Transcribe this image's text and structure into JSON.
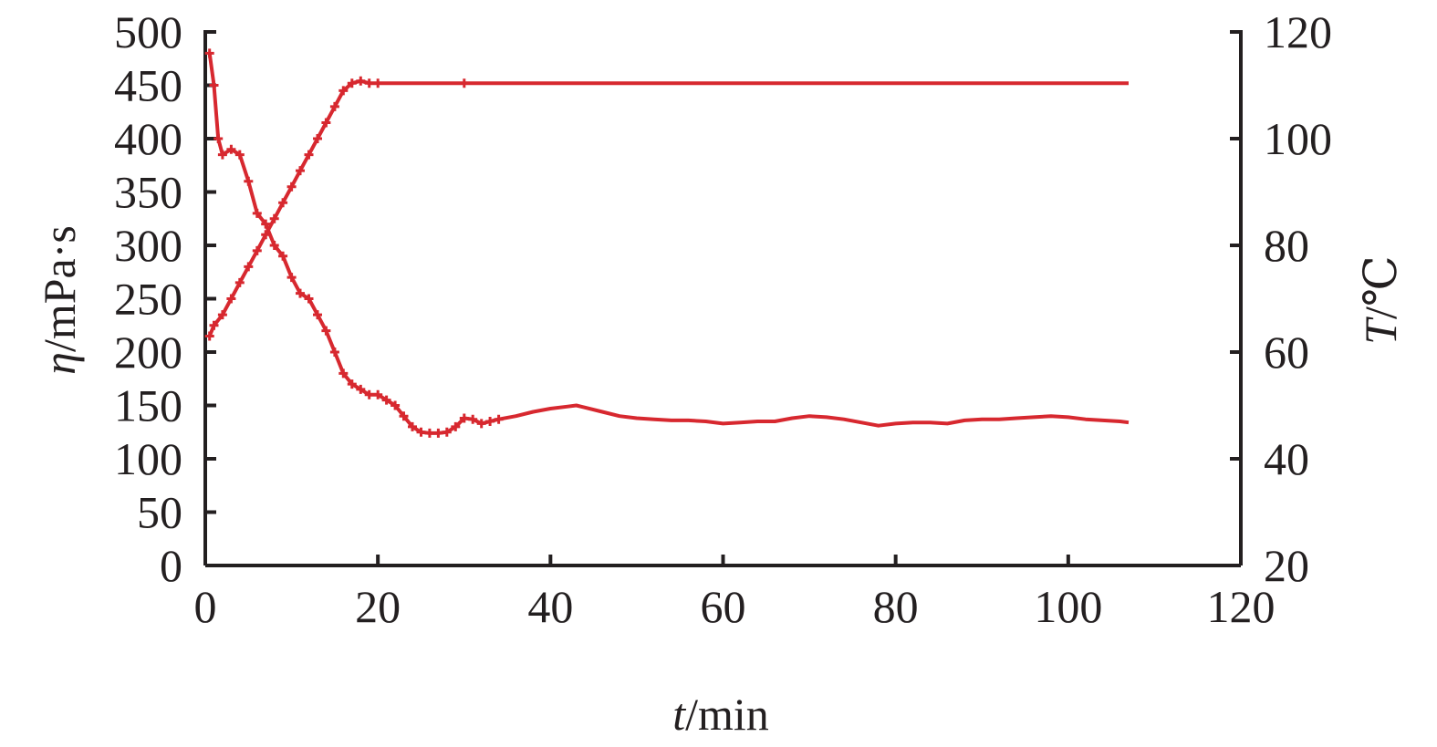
{
  "chart_data": {
    "type": "line",
    "x_axis": {
      "label_var": "t",
      "label_unit": "/min",
      "range": [
        0,
        120
      ],
      "ticks": [
        0,
        20,
        40,
        60,
        80,
        100,
        120
      ]
    },
    "y_left_axis": {
      "label_var": "η",
      "label_unit": "/mPa·s",
      "range": [
        0,
        500
      ],
      "ticks": [
        0,
        50,
        100,
        150,
        200,
        250,
        300,
        350,
        400,
        450,
        500
      ]
    },
    "y_right_axis": {
      "label_var": "T",
      "label_unit": "/℃",
      "range": [
        20,
        120
      ],
      "ticks": [
        20,
        40,
        60,
        80,
        100,
        120
      ]
    },
    "grid": false,
    "series": [
      {
        "axis": "left",
        "color": "#d7282f",
        "marker": "plus",
        "x": [
          0.5,
          1,
          1.5,
          2,
          3,
          4,
          5,
          6,
          7,
          8,
          9,
          10,
          11,
          12,
          13,
          14,
          15,
          16,
          17,
          18,
          19,
          20,
          21,
          22,
          23,
          24,
          25,
          26,
          27,
          28,
          29,
          30,
          31,
          32,
          33,
          34,
          36,
          38,
          40,
          42,
          43,
          44,
          46,
          48,
          50,
          52,
          54,
          56,
          58,
          60,
          62,
          64,
          66,
          68,
          70,
          72,
          74,
          76,
          78,
          80,
          82,
          84,
          86,
          88,
          90,
          92,
          94,
          96,
          98,
          100,
          102,
          104,
          106,
          107
        ],
        "y": [
          480,
          450,
          400,
          385,
          390,
          385,
          360,
          330,
          320,
          300,
          290,
          270,
          255,
          250,
          235,
          220,
          200,
          180,
          170,
          165,
          160,
          160,
          155,
          150,
          140,
          130,
          125,
          124,
          124,
          125,
          130,
          138,
          137,
          133,
          135,
          137,
          140,
          144,
          147,
          149,
          150,
          148,
          144,
          140,
          138,
          137,
          136,
          136,
          135,
          133,
          134,
          135,
          135,
          138,
          140,
          139,
          137,
          134,
          131,
          133,
          134,
          134,
          133,
          136,
          137,
          137,
          138,
          139,
          140,
          139,
          137,
          136,
          135,
          134
        ]
      },
      {
        "axis": "right",
        "color": "#d7282f",
        "marker": "plus",
        "x": [
          0.5,
          1,
          2,
          3,
          4,
          5,
          6,
          7,
          8,
          9,
          10,
          11,
          12,
          13,
          14,
          15,
          16,
          17,
          18,
          19,
          20,
          30,
          40,
          60,
          80,
          100,
          107
        ],
        "y": [
          63,
          65,
          67,
          70,
          73,
          76,
          79,
          82,
          85,
          88,
          91,
          94,
          97,
          100,
          103,
          106,
          109,
          110.4,
          110.8,
          110.4,
          110.4,
          110.4,
          110.4,
          110.4,
          110.4,
          110.4,
          110.4
        ]
      }
    ]
  }
}
